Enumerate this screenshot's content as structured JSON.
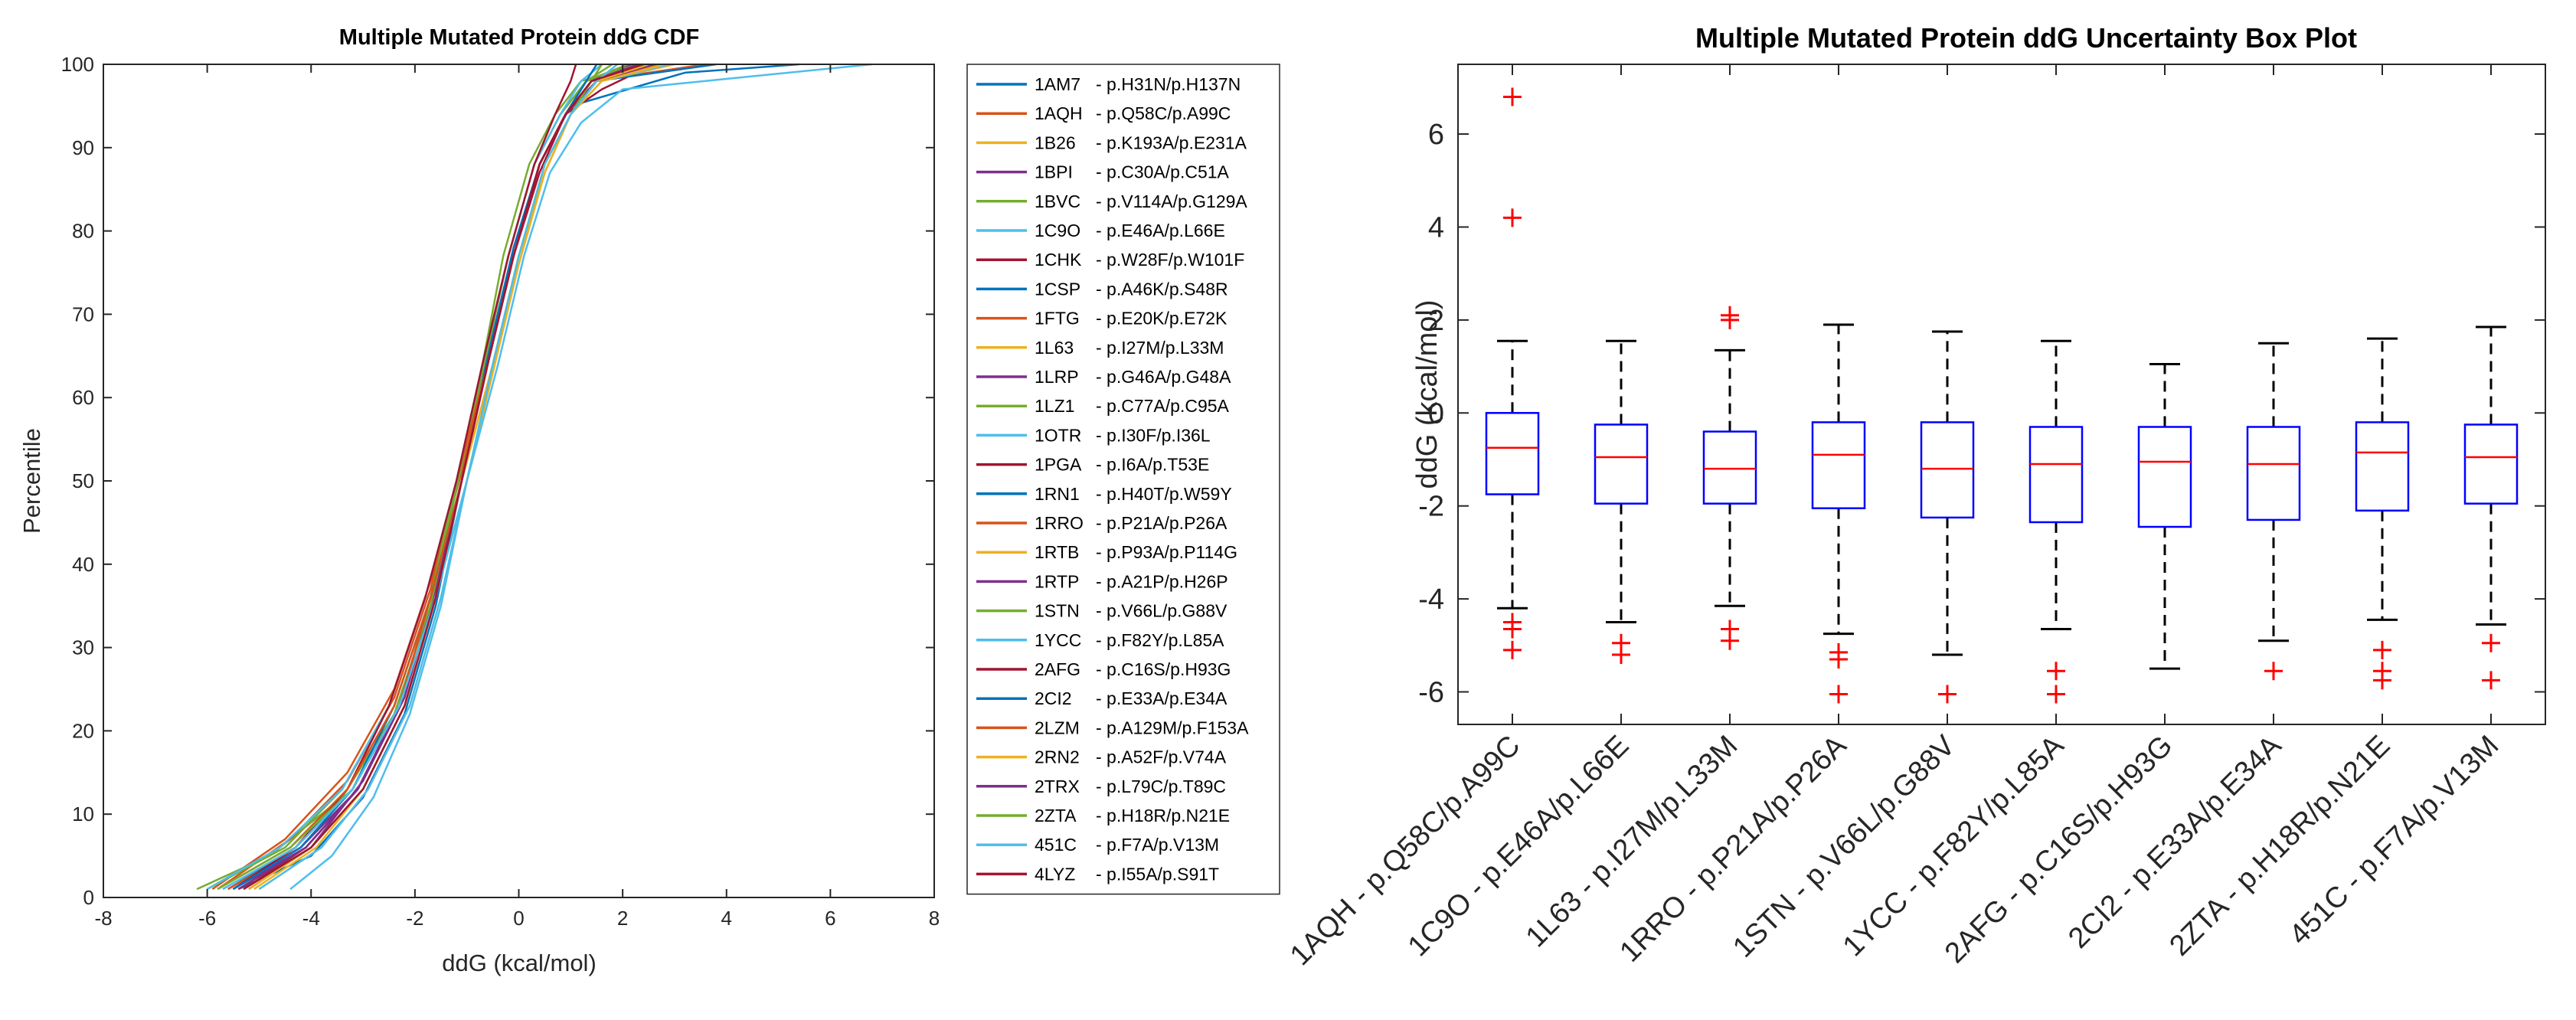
{
  "chart_data": [
    {
      "type": "line",
      "title": "Multiple Mutated Protein ddG CDF",
      "xlabel": "ddG (kcal/mol)",
      "ylabel": "Percentile",
      "xlim": [
        -8,
        8
      ],
      "ylim": [
        0,
        100
      ],
      "xticks": [
        -8,
        -6,
        -4,
        -2,
        0,
        2,
        4,
        6,
        8
      ],
      "yticks": [
        0,
        10,
        20,
        30,
        40,
        50,
        60,
        70,
        80,
        90,
        100
      ],
      "grid": false,
      "legend_position": "outside-right",
      "series": [
        {
          "name": "1AM7",
          "mutation": "p.H31N/p.H137N",
          "color": "#0072BD",
          "x": [
            -5.4,
            -4.0,
            -3.0,
            -2.2,
            -1.6,
            -1.1,
            -0.6,
            -0.1,
            0.4,
            1.0,
            3.2,
            5.4
          ],
          "y": [
            1,
            5,
            12,
            22,
            35,
            50,
            65,
            78,
            88,
            95,
            99,
            100
          ]
        },
        {
          "name": "1AQH",
          "mutation": "p.Q58C/p.A99C",
          "color": "#D95319",
          "x": [
            -5.9,
            -4.5,
            -3.3,
            -2.4,
            -1.7,
            -1.1,
            -0.6,
            -0.1,
            0.4,
            0.9,
            1.4,
            3.6
          ],
          "y": [
            1,
            7,
            15,
            25,
            38,
            51,
            64,
            77,
            88,
            94,
            98,
            100
          ]
        },
        {
          "name": "1B26",
          "mutation": "p.K193A/p.E231A",
          "color": "#EDB120",
          "x": [
            -5.0,
            -3.8,
            -2.9,
            -2.1,
            -1.5,
            -1.0,
            -0.5,
            0.0,
            0.5,
            1.0,
            1.5,
            2.4
          ],
          "y": [
            1,
            6,
            13,
            23,
            36,
            50,
            63,
            76,
            87,
            94,
            98,
            100
          ]
        },
        {
          "name": "1BPI",
          "mutation": "p.C30A/p.C51A",
          "color": "#7E2F8E",
          "x": [
            -5.2,
            -4.0,
            -3.0,
            -2.2,
            -1.6,
            -1.1,
            -0.6,
            -0.1,
            0.4,
            0.9,
            1.3,
            2.2
          ],
          "y": [
            1,
            6,
            14,
            24,
            37,
            50,
            64,
            77,
            88,
            94,
            98,
            100
          ]
        },
        {
          "name": "1BVC",
          "mutation": "p.V114A/p.G129A",
          "color": "#77AC30",
          "x": [
            -6.2,
            -4.8,
            -3.4,
            -2.4,
            -1.7,
            -1.2,
            -0.7,
            -0.2,
            0.3,
            0.8,
            1.3,
            2.1
          ],
          "y": [
            1,
            5,
            12,
            22,
            35,
            49,
            63,
            77,
            88,
            94,
            98,
            100
          ]
        },
        {
          "name": "1C9O",
          "mutation": "p.E46A/p.L66E",
          "color": "#4DBEEE",
          "x": [
            -4.4,
            -3.6,
            -2.8,
            -2.1,
            -1.5,
            -1.0,
            -0.4,
            0.1,
            0.6,
            1.2,
            2.0,
            6.8
          ],
          "y": [
            1,
            5,
            12,
            22,
            35,
            50,
            64,
            77,
            87,
            93,
            97,
            100
          ]
        },
        {
          "name": "1CHK",
          "mutation": "p.W28F/p.W101F",
          "color": "#A2142F",
          "x": [
            -5.3,
            -4.1,
            -3.1,
            -2.3,
            -1.6,
            -1.1,
            -0.6,
            -0.1,
            0.4,
            0.9,
            1.6,
            2.6
          ],
          "y": [
            1,
            6,
            13,
            23,
            36,
            50,
            64,
            77,
            87,
            94,
            97,
            100
          ]
        },
        {
          "name": "1CSP",
          "mutation": "p.A46K/p.S48R",
          "color": "#0072BD",
          "x": [
            -5.6,
            -4.3,
            -3.2,
            -2.3,
            -1.7,
            -1.1,
            -0.6,
            -0.1,
            0.4,
            0.9,
            1.5,
            3.8
          ],
          "y": [
            1,
            6,
            13,
            23,
            36,
            50,
            64,
            77,
            88,
            94,
            98,
            100
          ]
        },
        {
          "name": "1FTG",
          "mutation": "p.E20K/p.E72K",
          "color": "#D95319",
          "x": [
            -5.8,
            -4.4,
            -3.3,
            -2.4,
            -1.7,
            -1.2,
            -0.6,
            -0.1,
            0.4,
            0.9,
            1.5,
            2.8
          ],
          "y": [
            1,
            7,
            14,
            24,
            37,
            50,
            64,
            77,
            88,
            94,
            98,
            100
          ]
        },
        {
          "name": "1L63",
          "mutation": "p.I27M/p.L33M",
          "color": "#EDB120",
          "x": [
            -5.1,
            -3.9,
            -3.0,
            -2.2,
            -1.6,
            -1.1,
            -0.5,
            0.0,
            0.5,
            1.0,
            1.6,
            3.0
          ],
          "y": [
            1,
            6,
            13,
            23,
            36,
            50,
            64,
            77,
            87,
            94,
            98,
            100
          ]
        },
        {
          "name": "1LRP",
          "mutation": "p.G46A/p.G48A",
          "color": "#7E2F8E",
          "x": [
            -5.5,
            -4.2,
            -3.1,
            -2.3,
            -1.6,
            -1.1,
            -0.6,
            -0.1,
            0.4,
            0.9,
            1.4,
            2.5
          ],
          "y": [
            1,
            6,
            13,
            23,
            36,
            50,
            64,
            77,
            88,
            94,
            98,
            100
          ]
        },
        {
          "name": "1LZ1",
          "mutation": "p.C77A/p.C95A",
          "color": "#77AC30",
          "x": [
            -5.7,
            -4.3,
            -3.2,
            -2.3,
            -1.7,
            -1.2,
            -0.7,
            -0.3,
            0.2,
            0.7,
            1.2,
            2.3
          ],
          "y": [
            1,
            6,
            13,
            23,
            36,
            50,
            64,
            77,
            88,
            94,
            98,
            100
          ]
        },
        {
          "name": "1OTR",
          "mutation": "p.I30F/p.I36L",
          "color": "#4DBEEE",
          "x": [
            -5.0,
            -3.8,
            -2.9,
            -2.1,
            -1.5,
            -1.0,
            -0.5,
            0.0,
            0.5,
            1.0,
            1.6,
            2.9
          ],
          "y": [
            1,
            6,
            13,
            23,
            36,
            50,
            64,
            77,
            87,
            94,
            98,
            100
          ]
        },
        {
          "name": "1PGA",
          "mutation": "p.I6A/p.T53E",
          "color": "#A2142F",
          "x": [
            -5.4,
            -4.1,
            -3.1,
            -2.3,
            -1.6,
            -1.1,
            -0.6,
            -0.1,
            0.4,
            0.9,
            1.5,
            2.6
          ],
          "y": [
            1,
            6,
            13,
            23,
            36,
            50,
            64,
            77,
            88,
            94,
            98,
            100
          ]
        },
        {
          "name": "1RN1",
          "mutation": "p.H40T/p.W59Y",
          "color": "#0072BD",
          "x": [
            -5.2,
            -4.0,
            -3.0,
            -2.2,
            -1.6,
            -1.1,
            -0.6,
            -0.1,
            0.4,
            0.9,
            1.5,
            2.7
          ],
          "y": [
            1,
            6,
            13,
            23,
            36,
            50,
            64,
            77,
            88,
            94,
            98,
            100
          ]
        },
        {
          "name": "1RRO",
          "mutation": "p.P21A/p.P26A",
          "color": "#D95319",
          "x": [
            -5.6,
            -4.2,
            -3.2,
            -2.3,
            -1.7,
            -1.1,
            -0.6,
            -0.1,
            0.4,
            0.9,
            1.5,
            2.7
          ],
          "y": [
            1,
            6,
            13,
            23,
            36,
            50,
            64,
            77,
            88,
            94,
            98,
            100
          ]
        },
        {
          "name": "1RTB",
          "mutation": "p.P93A/p.P114G",
          "color": "#EDB120",
          "x": [
            -5.3,
            -4.0,
            -3.0,
            -2.2,
            -1.6,
            -1.1,
            -0.5,
            0.0,
            0.5,
            1.0,
            1.6,
            2.8
          ],
          "y": [
            1,
            6,
            13,
            23,
            36,
            50,
            64,
            77,
            87,
            94,
            98,
            100
          ]
        },
        {
          "name": "1RTP",
          "mutation": "p.A21P/p.H26P",
          "color": "#7E2F8E",
          "x": [
            -5.5,
            -4.1,
            -3.1,
            -2.3,
            -1.6,
            -1.1,
            -0.6,
            -0.1,
            0.4,
            0.9,
            1.5,
            2.6
          ],
          "y": [
            1,
            6,
            13,
            23,
            36,
            50,
            64,
            77,
            88,
            94,
            98,
            100
          ]
        },
        {
          "name": "1STN",
          "mutation": "p.V66L/p.G88V",
          "color": "#77AC30",
          "x": [
            -6.0,
            -4.5,
            -3.4,
            -2.5,
            -1.8,
            -1.2,
            -0.7,
            -0.2,
            0.3,
            0.8,
            1.3,
            1.8
          ],
          "y": [
            1,
            6,
            13,
            23,
            36,
            50,
            64,
            77,
            88,
            94,
            98,
            100
          ]
        },
        {
          "name": "1YCC",
          "mutation": "p.F82Y/p.L85A",
          "color": "#4DBEEE",
          "x": [
            -6.0,
            -4.6,
            -3.4,
            -2.5,
            -1.8,
            -1.2,
            -0.7,
            -0.2,
            0.3,
            0.8,
            1.2,
            1.6
          ],
          "y": [
            1,
            6,
            13,
            23,
            36,
            50,
            64,
            77,
            88,
            94,
            98,
            100
          ]
        },
        {
          "name": "2AFG",
          "mutation": "p.C16S/p.H93G",
          "color": "#A2142F",
          "x": [
            -5.5,
            -4.3,
            -3.3,
            -2.5,
            -1.8,
            -1.2,
            -0.7,
            -0.2,
            0.3,
            0.7,
            1.0,
            1.1
          ],
          "y": [
            1,
            6,
            13,
            23,
            36,
            50,
            64,
            77,
            88,
            94,
            98,
            100
          ]
        },
        {
          "name": "2CI2",
          "mutation": "p.E33A/p.E34A",
          "color": "#0072BD",
          "x": [
            -5.5,
            -4.2,
            -3.2,
            -2.4,
            -1.7,
            -1.1,
            -0.6,
            -0.1,
            0.4,
            0.9,
            1.3,
            1.5
          ],
          "y": [
            1,
            6,
            13,
            23,
            36,
            50,
            64,
            77,
            88,
            94,
            98,
            100
          ]
        },
        {
          "name": "2LZM",
          "mutation": "p.A129M/p.F153A",
          "color": "#D95319",
          "x": [
            -5.8,
            -4.4,
            -3.3,
            -2.4,
            -1.7,
            -1.1,
            -0.6,
            -0.1,
            0.4,
            0.9,
            1.4,
            2.4
          ],
          "y": [
            1,
            6,
            13,
            23,
            36,
            50,
            64,
            77,
            88,
            94,
            98,
            100
          ]
        },
        {
          "name": "2RN2",
          "mutation": "p.A52F/p.V74A",
          "color": "#EDB120",
          "x": [
            -5.2,
            -4.0,
            -3.0,
            -2.2,
            -1.6,
            -1.1,
            -0.5,
            0.0,
            0.5,
            1.0,
            1.5,
            2.5
          ],
          "y": [
            1,
            6,
            13,
            23,
            36,
            50,
            64,
            77,
            87,
            94,
            98,
            100
          ]
        },
        {
          "name": "2TRX",
          "mutation": "p.L79C/p.T89C",
          "color": "#7E2F8E",
          "x": [
            -5.4,
            -4.1,
            -3.1,
            -2.3,
            -1.6,
            -1.1,
            -0.6,
            -0.1,
            0.4,
            0.9,
            1.4,
            2.3
          ],
          "y": [
            1,
            6,
            13,
            23,
            36,
            50,
            64,
            77,
            88,
            94,
            98,
            100
          ]
        },
        {
          "name": "2ZTA",
          "mutation": "p.H18R/p.N21E",
          "color": "#77AC30",
          "x": [
            -5.8,
            -4.4,
            -3.2,
            -2.3,
            -1.6,
            -1.0,
            -0.5,
            0.0,
            0.5,
            1.0,
            1.4,
            1.6
          ],
          "y": [
            1,
            6,
            13,
            23,
            36,
            50,
            64,
            77,
            88,
            94,
            98,
            100
          ]
        },
        {
          "name": "451C",
          "mutation": "p.F7A/p.V13M",
          "color": "#4DBEEE",
          "x": [
            -5.7,
            -4.3,
            -3.2,
            -2.3,
            -1.6,
            -1.0,
            -0.5,
            0.0,
            0.5,
            1.0,
            1.5,
            1.9
          ],
          "y": [
            1,
            6,
            13,
            23,
            36,
            50,
            64,
            77,
            88,
            94,
            98,
            100
          ]
        },
        {
          "name": "4LYZ",
          "mutation": "p.I55A/p.S91T",
          "color": "#A2142F",
          "x": [
            -5.3,
            -4.0,
            -3.0,
            -2.2,
            -1.6,
            -1.1,
            -0.6,
            -0.1,
            0.4,
            0.9,
            1.4,
            2.4
          ],
          "y": [
            1,
            6,
            13,
            23,
            36,
            50,
            64,
            77,
            88,
            94,
            98,
            100
          ]
        }
      ]
    },
    {
      "type": "box",
      "title": "Multiple Mutated Protein ddG Uncertainty Box Plot",
      "xlabel": "",
      "ylabel": "ddG (kcal/mol)",
      "ylim": [
        -6.7,
        7.5
      ],
      "yticks": [
        -6,
        -4,
        -2,
        0,
        2,
        4,
        6
      ],
      "grid": false,
      "categories": [
        "1AQH  - p.Q58C/p.A99C",
        "1C9O  - p.E46A/p.L66E",
        "1L63  - p.I27M/p.L33M",
        "1RRO  - p.P21A/p.P26A",
        "1STN  - p.V66L/p.G88V",
        "1YCC  - p.F82Y/p.L85A",
        "2AFG  - p.C16S/p.H93G",
        "2CI2  - p.E33A/p.E34A",
        "2ZTA  - p.H18R/p.N21E",
        "451C  - p.F7A/p.V13M"
      ],
      "boxes": [
        {
          "q1": -1.75,
          "median": -0.75,
          "q3": 0.0,
          "whisker_low": -4.2,
          "whisker_high": 1.55,
          "outliers": [
            6.8,
            4.2,
            -4.5,
            -4.65,
            -5.1
          ]
        },
        {
          "q1": -1.95,
          "median": -0.95,
          "q3": -0.25,
          "whisker_low": -4.5,
          "whisker_high": 1.55,
          "outliers": [
            -4.95,
            -5.2
          ]
        },
        {
          "q1": -1.95,
          "median": -1.2,
          "q3": -0.4,
          "whisker_low": -4.15,
          "whisker_high": 1.35,
          "outliers": [
            2.1,
            2.0,
            -4.65,
            -4.9
          ]
        },
        {
          "q1": -2.05,
          "median": -0.9,
          "q3": -0.2,
          "whisker_low": -4.75,
          "whisker_high": 1.9,
          "outliers": [
            -5.15,
            -5.3,
            -6.05
          ]
        },
        {
          "q1": -2.25,
          "median": -1.2,
          "q3": -0.2,
          "whisker_low": -5.2,
          "whisker_high": 1.75,
          "outliers": [
            -6.05
          ]
        },
        {
          "q1": -2.35,
          "median": -1.1,
          "q3": -0.3,
          "whisker_low": -4.65,
          "whisker_high": 1.55,
          "outliers": [
            -5.55,
            -6.05
          ]
        },
        {
          "q1": -2.45,
          "median": -1.05,
          "q3": -0.3,
          "whisker_low": -5.5,
          "whisker_high": 1.05,
          "outliers": []
        },
        {
          "q1": -2.3,
          "median": -1.1,
          "q3": -0.3,
          "whisker_low": -4.9,
          "whisker_high": 1.5,
          "outliers": [
            -5.55
          ]
        },
        {
          "q1": -2.1,
          "median": -0.85,
          "q3": -0.2,
          "whisker_low": -4.45,
          "whisker_high": 1.6,
          "outliers": [
            -5.1,
            -5.55,
            -5.75
          ]
        },
        {
          "q1": -1.95,
          "median": -0.95,
          "q3": -0.25,
          "whisker_low": -4.55,
          "whisker_high": 1.85,
          "outliers": [
            -4.95,
            -5.75
          ]
        }
      ],
      "colors": {
        "box": "#0000FF",
        "median": "#FF0000",
        "whisker": "#000000",
        "outlier": "#FF0000"
      }
    }
  ]
}
